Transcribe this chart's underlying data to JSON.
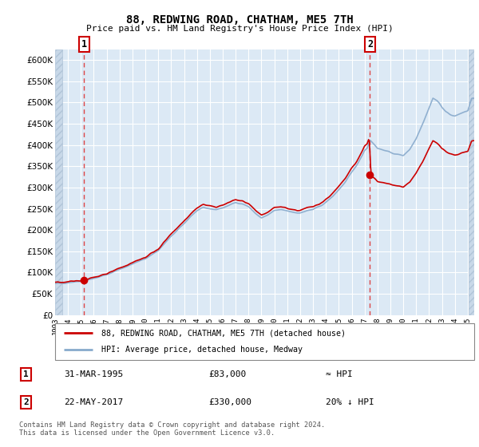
{
  "title": "88, REDWING ROAD, CHATHAM, ME5 7TH",
  "subtitle": "Price paid vs. HM Land Registry's House Price Index (HPI)",
  "ylim": [
    0,
    625000
  ],
  "yticks": [
    0,
    50000,
    100000,
    150000,
    200000,
    250000,
    300000,
    350000,
    400000,
    450000,
    500000,
    550000,
    600000
  ],
  "xlim_start": 1993.0,
  "xlim_end": 2025.5,
  "background_color": "#dce9f5",
  "hatch_color": "#c8d8e8",
  "grid_color": "#ffffff",
  "sale1_year": 1995.25,
  "sale1_price": 83000,
  "sale2_year": 2017.42,
  "sale2_price": 330000,
  "legend_label1": "88, REDWING ROAD, CHATHAM, ME5 7TH (detached house)",
  "legend_label2": "HPI: Average price, detached house, Medway",
  "table_row1": [
    "1",
    "31-MAR-1995",
    "£83,000",
    "≈ HPI"
  ],
  "table_row2": [
    "2",
    "22-MAY-2017",
    "£330,000",
    "20% ↓ HPI"
  ],
  "footnote": "Contains HM Land Registry data © Crown copyright and database right 2024.\nThis data is licensed under the Open Government Licence v3.0.",
  "line_color_red": "#cc0000",
  "line_color_blue": "#88aacc",
  "dashed_line_color": "#dd4444"
}
